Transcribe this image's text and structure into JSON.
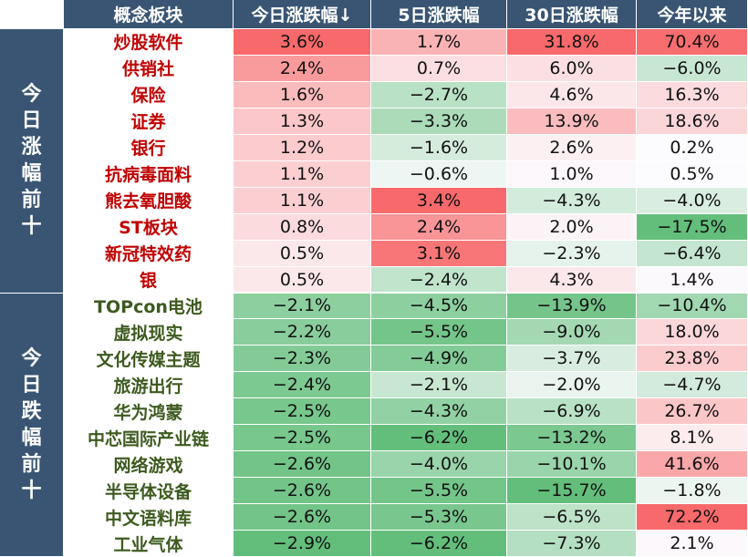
{
  "chart_data": {
    "type": "table",
    "columns": [
      "概念板块",
      "今日涨跌幅↓",
      "5日涨跌幅",
      "30日涨跌幅",
      "今年以来"
    ],
    "groups": [
      {
        "label": "今日涨幅前十",
        "rows": [
          {
            "name": "炒股软件",
            "values": [
              "3.6%",
              "1.7%",
              "31.8%",
              "70.4%"
            ]
          },
          {
            "name": "供销社",
            "values": [
              "2.4%",
              "0.7%",
              "6.0%",
              "−6.0%"
            ]
          },
          {
            "name": "保险",
            "values": [
              "1.6%",
              "−2.7%",
              "4.6%",
              "16.3%"
            ]
          },
          {
            "name": "证券",
            "values": [
              "1.3%",
              "−3.3%",
              "13.9%",
              "18.6%"
            ]
          },
          {
            "name": "银行",
            "values": [
              "1.2%",
              "−1.6%",
              "2.6%",
              "0.2%"
            ]
          },
          {
            "name": "抗病毒面料",
            "values": [
              "1.1%",
              "−0.6%",
              "1.0%",
              "0.5%"
            ]
          },
          {
            "name": "熊去氧胆酸",
            "values": [
              "1.1%",
              "3.4%",
              "−4.3%",
              "−4.0%"
            ]
          },
          {
            "name": "ST板块",
            "values": [
              "0.8%",
              "2.4%",
              "2.0%",
              "−17.5%"
            ]
          },
          {
            "name": "新冠特效药",
            "values": [
              "0.5%",
              "3.1%",
              "−2.3%",
              "−6.4%"
            ]
          },
          {
            "name": "银",
            "values": [
              "0.5%",
              "−2.4%",
              "4.3%",
              "1.4%"
            ]
          }
        ]
      },
      {
        "label": "今日跌幅前十",
        "rows": [
          {
            "name": "TOPcon电池",
            "values": [
              "−2.1%",
              "−4.5%",
              "−13.9%",
              "−10.4%"
            ]
          },
          {
            "name": "虚拟现实",
            "values": [
              "−2.2%",
              "−5.5%",
              "−9.0%",
              "18.0%"
            ]
          },
          {
            "name": "文化传媒主题",
            "values": [
              "−2.3%",
              "−4.9%",
              "−3.7%",
              "23.8%"
            ]
          },
          {
            "name": "旅游出行",
            "values": [
              "−2.4%",
              "−2.1%",
              "−2.0%",
              "−4.7%"
            ]
          },
          {
            "name": "华为鸿蒙",
            "values": [
              "−2.5%",
              "−4.3%",
              "−6.9%",
              "26.7%"
            ]
          },
          {
            "name": "中芯国际产业链",
            "values": [
              "−2.5%",
              "−6.2%",
              "−13.2%",
              "8.1%"
            ]
          },
          {
            "name": "网络游戏",
            "values": [
              "−2.6%",
              "−4.0%",
              "−10.1%",
              "41.6%"
            ]
          },
          {
            "name": "半导体设备",
            "values": [
              "−2.6%",
              "−5.5%",
              "−15.7%",
              "−1.8%"
            ]
          },
          {
            "name": "中文语料库",
            "values": [
              "−2.6%",
              "−5.3%",
              "−6.5%",
              "72.2%"
            ]
          },
          {
            "name": "工业气体",
            "values": [
              "−2.9%",
              "−6.2%",
              "−7.3%",
              "2.1%"
            ]
          }
        ]
      }
    ],
    "colors": {
      "header_bg": "#395573",
      "header_text": "#ffffff",
      "gainers_name": "#c00000",
      "losers_name": "#3d5a1e",
      "positive": "#f8696b",
      "negative": "#63be7b",
      "neutral": "#fcfcff"
    }
  }
}
